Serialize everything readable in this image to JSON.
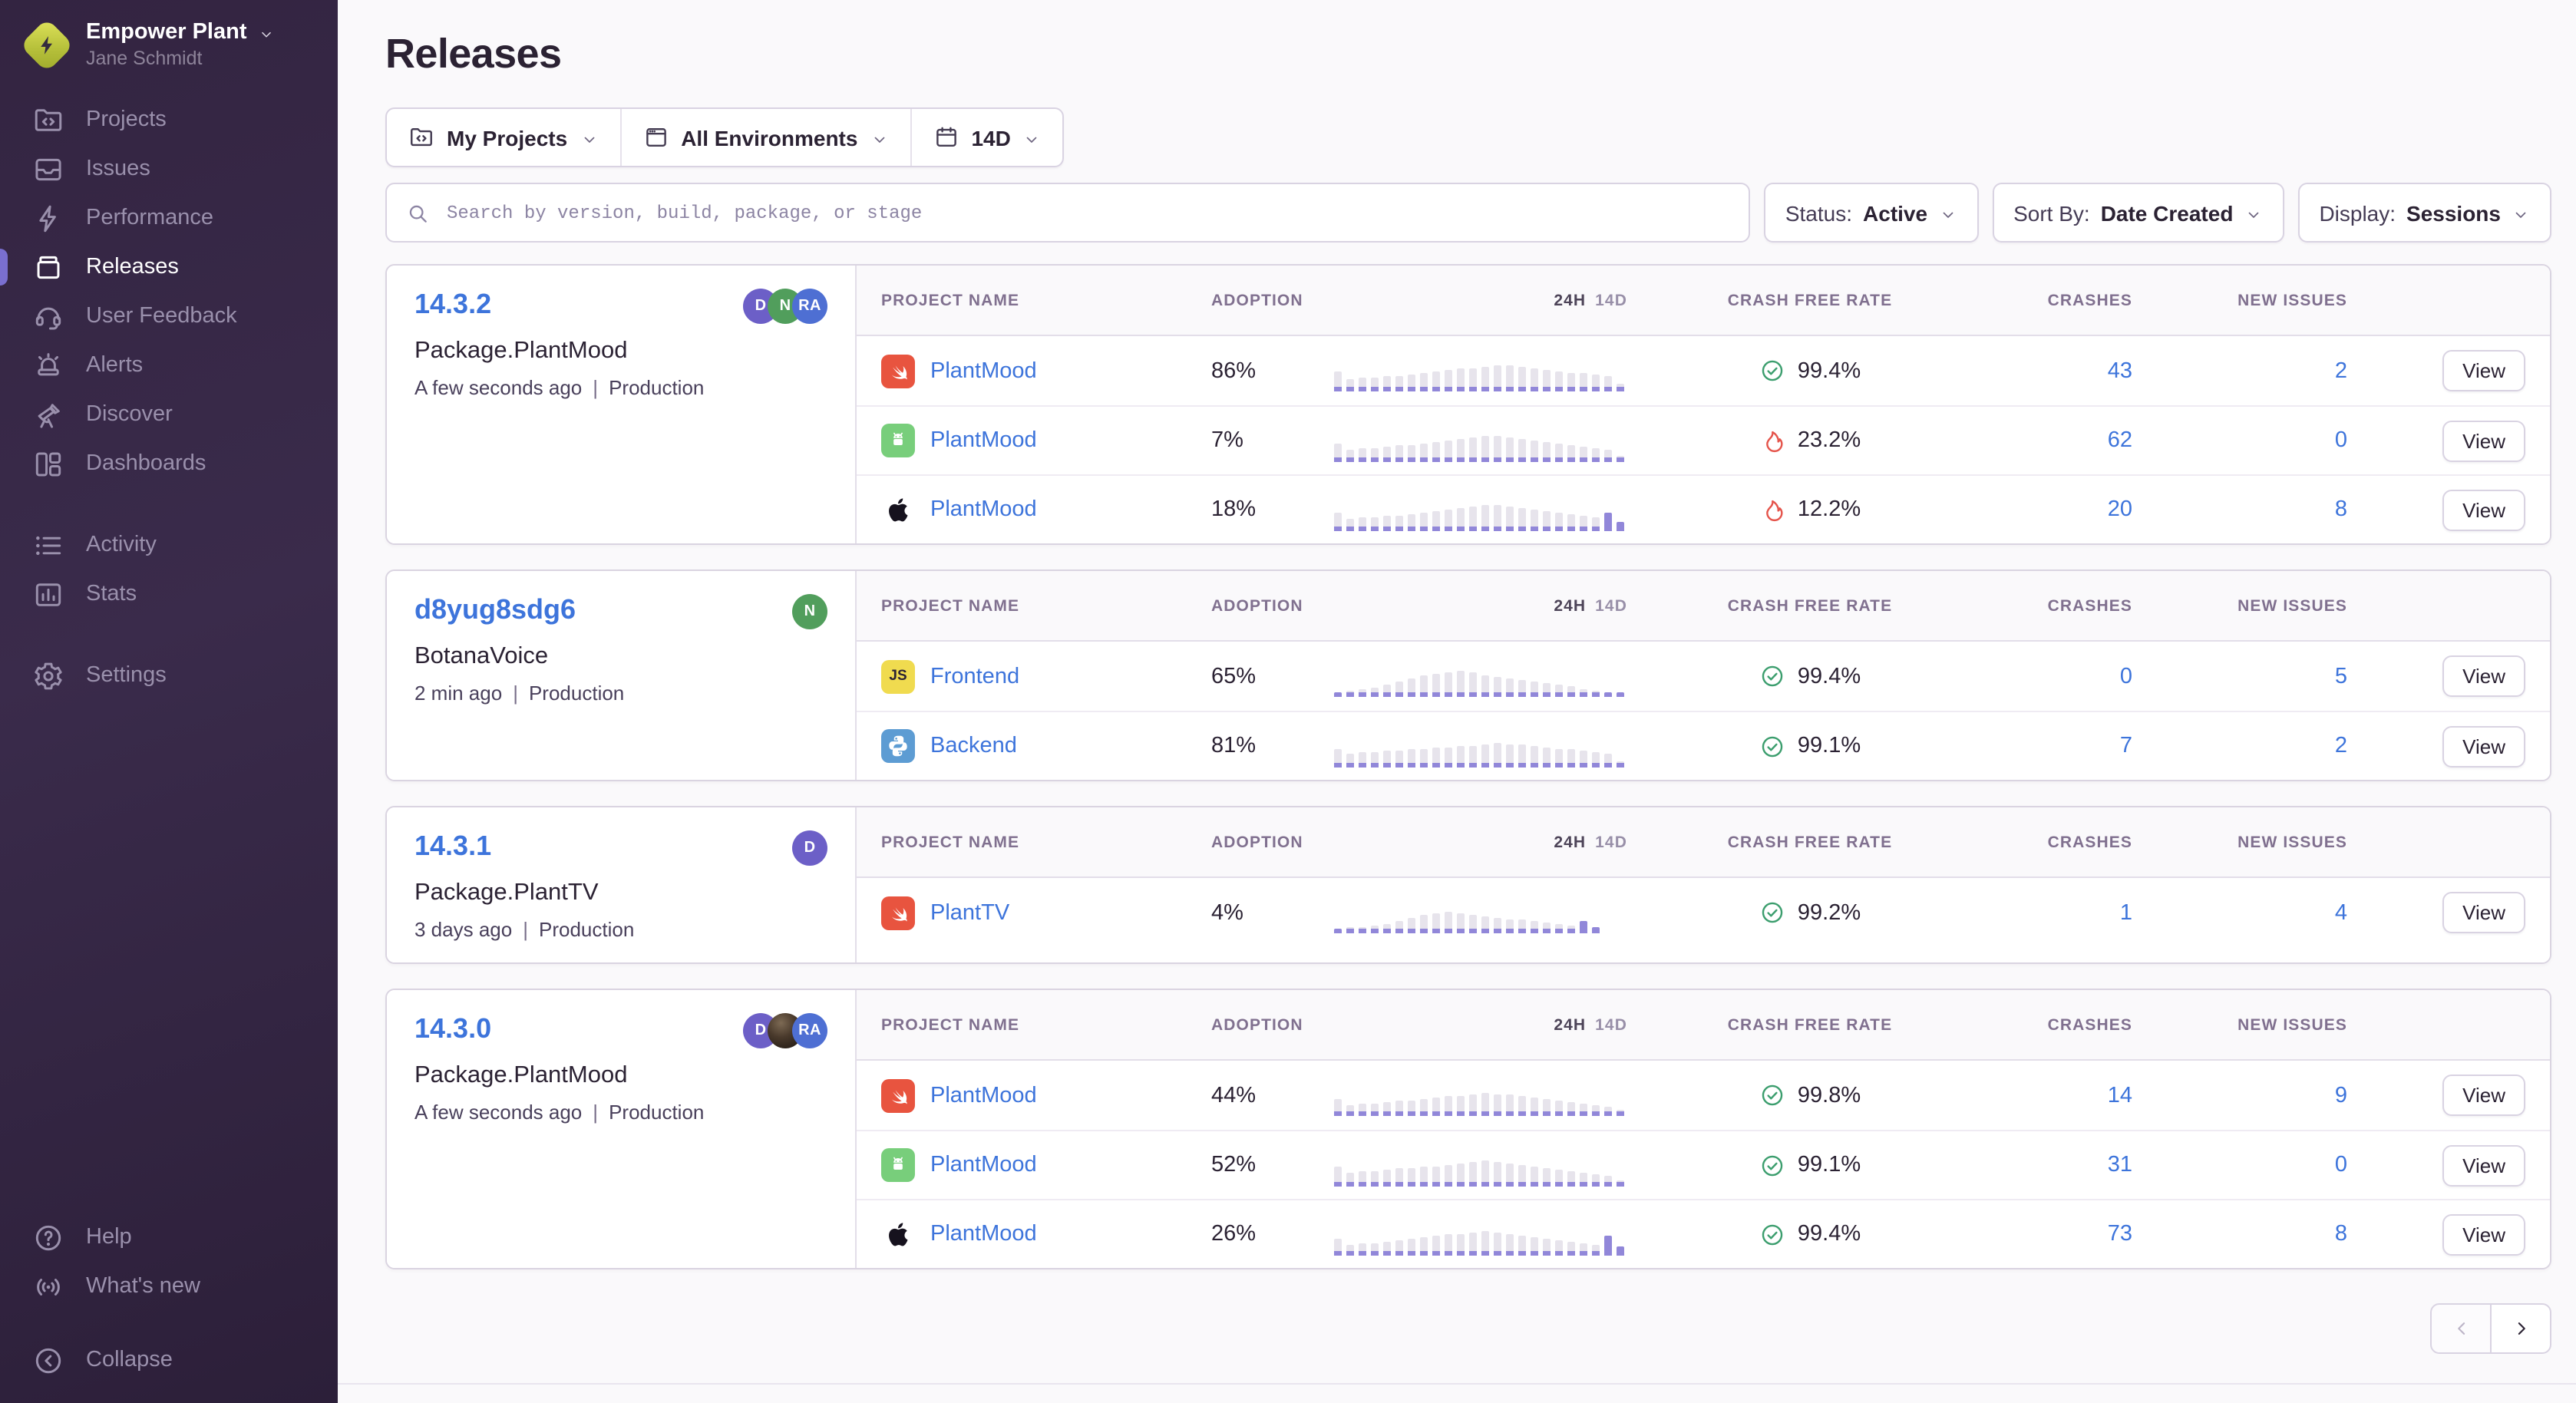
{
  "sidebar": {
    "org_name": "Empower Plant",
    "user_name": "Jane Schmidt",
    "sections": [
      [
        {
          "id": "projects",
          "icon": "projects",
          "label": "Projects",
          "active": false
        },
        {
          "id": "issues",
          "icon": "issues",
          "label": "Issues",
          "active": false
        },
        {
          "id": "performance",
          "icon": "performance",
          "label": "Performance",
          "active": false
        },
        {
          "id": "releases",
          "icon": "releases",
          "label": "Releases",
          "active": true
        },
        {
          "id": "user-feedback",
          "icon": "user-feedback",
          "label": "User Feedback",
          "active": false
        },
        {
          "id": "alerts",
          "icon": "alerts",
          "label": "Alerts",
          "active": false
        },
        {
          "id": "discover",
          "icon": "discover",
          "label": "Discover",
          "active": false
        },
        {
          "id": "dashboards",
          "icon": "dashboards",
          "label": "Dashboards",
          "active": false
        }
      ],
      [
        {
          "id": "activity",
          "icon": "activity",
          "label": "Activity",
          "active": false
        },
        {
          "id": "stats",
          "icon": "stats",
          "label": "Stats",
          "active": false
        }
      ],
      [
        {
          "id": "settings",
          "icon": "settings",
          "label": "Settings",
          "active": false
        }
      ]
    ],
    "footer_items": [
      {
        "id": "help",
        "icon": "help",
        "label": "Help"
      },
      {
        "id": "whats-new",
        "icon": "whats-new",
        "label": "What's new"
      }
    ],
    "collapse": {
      "id": "collapse",
      "icon": "collapse",
      "label": "Collapse"
    }
  },
  "header": {
    "title": "Releases"
  },
  "filters": {
    "my_projects": "My Projects",
    "all_environments": "All Environments",
    "date_range": "14D",
    "search_placeholder": "Search by version, build, package, or stage",
    "status_label": "Status:",
    "status_value": "Active",
    "sort_label": "Sort By:",
    "sort_value": "Date Created",
    "display_label": "Display:",
    "display_value": "Sessions"
  },
  "table": {
    "headers": {
      "project": "Project Name",
      "adoption": "Adoption",
      "trend_24h": "24H",
      "trend_14d": "14D",
      "crash_free": "Crash Free Rate",
      "crashes": "Crashes",
      "new_issues": "New Issues"
    },
    "view_label": "View"
  },
  "releases": [
    {
      "version": "14.3.2",
      "package": "Package.PlantMood",
      "created": "A few seconds ago",
      "environment": "Production",
      "avatars": [
        {
          "initials": "D",
          "color": "#6C5FC7"
        },
        {
          "initials": "N",
          "color": "#519E5C"
        },
        {
          "initials": "RA",
          "color": "#4E6FD3"
        }
      ],
      "projects": [
        {
          "platform": "swift",
          "name": "PlantMood",
          "adoption": "86%",
          "health": "good",
          "crash_free": "99.4%",
          "crashes": "43",
          "new_issues": "2",
          "spark": {
            "heights": [
              13,
              8,
              9,
              9,
              10,
              10,
              11,
              12,
              13,
              14,
              15,
              15,
              16,
              17,
              17,
              16,
              15,
              14,
              13,
              12,
              12,
              11,
              10,
              5
            ],
            "purple_from": null
          }
        },
        {
          "platform": "android",
          "name": "PlantMood",
          "adoption": "7%",
          "health": "bad",
          "crash_free": "23.2%",
          "crashes": "62",
          "new_issues": "0",
          "spark": {
            "heights": [
              12,
              8,
              9,
              9,
              10,
              11,
              11,
              12,
              13,
              14,
              15,
              16,
              17,
              17,
              16,
              15,
              14,
              13,
              12,
              11,
              10,
              9,
              8,
              4
            ],
            "purple_from": null
          }
        },
        {
          "platform": "apple",
          "name": "PlantMood",
          "adoption": "18%",
          "health": "bad",
          "crash_free": "12.2%",
          "crashes": "20",
          "new_issues": "8",
          "spark": {
            "heights": [
              12,
              8,
              9,
              9,
              10,
              10,
              11,
              12,
              13,
              14,
              15,
              16,
              17,
              17,
              16,
              15,
              14,
              13,
              12,
              11,
              10,
              9,
              12,
              6
            ],
            "purple_from": 22
          }
        }
      ]
    },
    {
      "version": "d8yug8sdg6",
      "package": "BotanaVoice",
      "created": "2 min ago",
      "environment": "Production",
      "avatars": [
        {
          "initials": "N",
          "color": "#519E5C"
        }
      ],
      "projects": [
        {
          "platform": "javascript",
          "name": "Frontend",
          "adoption": "65%",
          "health": "good",
          "crash_free": "99.4%",
          "crashes": "0",
          "new_issues": "5",
          "spark": {
            "heights": [
              3,
              4,
              5,
              6,
              8,
              10,
              12,
              14,
              15,
              16,
              17,
              16,
              14,
              13,
              12,
              11,
              10,
              9,
              8,
              7,
              5,
              4,
              3,
              2
            ],
            "purple_from": null
          }
        },
        {
          "platform": "python",
          "name": "Backend",
          "adoption": "81%",
          "health": "good",
          "crash_free": "99.1%",
          "crashes": "7",
          "new_issues": "2",
          "spark": {
            "heights": [
              12,
              9,
              10,
              10,
              11,
              11,
              12,
              12,
              13,
              13,
              14,
              14,
              15,
              16,
              15,
              15,
              14,
              13,
              12,
              12,
              11,
              10,
              9,
              4
            ],
            "purple_from": null
          }
        }
      ]
    },
    {
      "version": "14.3.1",
      "package": "Package.PlantTV",
      "created": "3 days ago",
      "environment": "Production",
      "avatars": [
        {
          "initials": "D",
          "color": "#6C5FC7"
        }
      ],
      "projects": [
        {
          "platform": "swift",
          "name": "PlantTV",
          "adoption": "4%",
          "health": "good",
          "crash_free": "99.2%",
          "crashes": "1",
          "new_issues": "4",
          "spark": {
            "heights": [
              3,
              4,
              4,
              5,
              6,
              8,
              10,
              12,
              13,
              14,
              13,
              12,
              11,
              10,
              9,
              9,
              8,
              7,
              6,
              5,
              8,
              4
            ],
            "purple_from": 20
          }
        }
      ]
    },
    {
      "version": "14.3.0",
      "package": "Package.PlantMood",
      "created": "A few seconds ago",
      "environment": "Production",
      "avatars": [
        {
          "initials": "D",
          "color": "#6C5FC7"
        },
        {
          "photo": true
        },
        {
          "initials": "RA",
          "color": "#4E6FD3"
        }
      ],
      "projects": [
        {
          "platform": "swift",
          "name": "PlantMood",
          "adoption": "44%",
          "health": "good",
          "crash_free": "99.8%",
          "crashes": "14",
          "new_issues": "9",
          "spark": {
            "heights": [
              11,
              7,
              8,
              8,
              9,
              10,
              10,
              11,
              12,
              13,
              13,
              14,
              15,
              14,
              14,
              13,
              12,
              11,
              10,
              9,
              8,
              7,
              6,
              4
            ],
            "purple_from": null
          }
        },
        {
          "platform": "android",
          "name": "PlantMood",
          "adoption": "52%",
          "health": "good",
          "crash_free": "99.1%",
          "crashes": "31",
          "new_issues": "0",
          "spark": {
            "heights": [
              13,
              9,
              10,
              10,
              11,
              12,
              12,
              13,
              13,
              14,
              15,
              16,
              17,
              16,
              15,
              14,
              13,
              12,
              11,
              10,
              9,
              8,
              7,
              4
            ],
            "purple_from": null
          }
        },
        {
          "platform": "apple",
          "name": "PlantMood",
          "adoption": "26%",
          "health": "good",
          "crash_free": "99.4%",
          "crashes": "73",
          "new_issues": "8",
          "spark": {
            "heights": [
              11,
              7,
              8,
              8,
              9,
              10,
              11,
              12,
              13,
              14,
              14,
              15,
              16,
              15,
              14,
              13,
              12,
              11,
              10,
              9,
              8,
              7,
              13,
              6
            ],
            "purple_from": 22
          }
        }
      ]
    }
  ],
  "pagination": {
    "prev_enabled": false,
    "next_enabled": true
  },
  "colors": {
    "link": "#3D74DB",
    "spark_bar": "#E7E4EC",
    "spark_accent": "#9187D9",
    "health_good": "#3C9E6E",
    "health_bad": "#E5544B",
    "active_indicator": "#7A6FD0",
    "sidebar_bg": "#332441",
    "swift_bg": "#E8543F",
    "android_bg": "#78CE7B",
    "js_bg": "#F0DB4F",
    "python_bg": "#5D9CD3"
  }
}
